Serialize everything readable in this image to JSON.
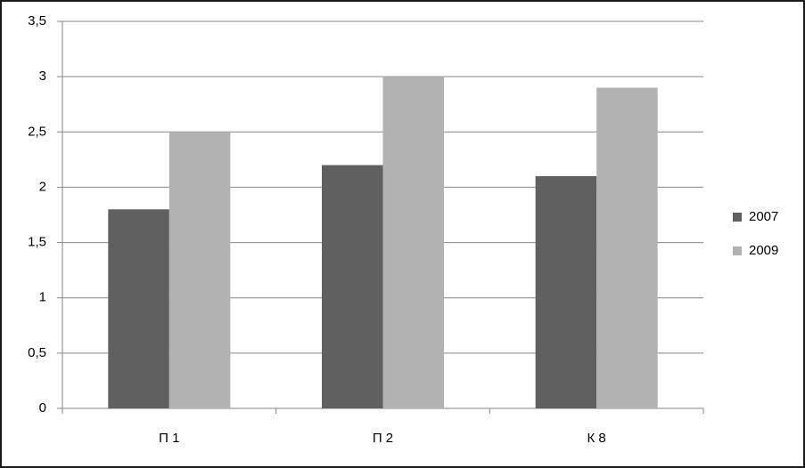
{
  "chart_data": {
    "type": "bar",
    "categories": [
      "П 1",
      "П 2",
      "К 8"
    ],
    "series": [
      {
        "name": "2007",
        "color": "#606060",
        "values": [
          1.8,
          2.2,
          2.1
        ]
      },
      {
        "name": "2009",
        "color": "#b2b2b2",
        "values": [
          2.5,
          3.0,
          2.9
        ]
      }
    ],
    "ylim": [
      0,
      3.5
    ],
    "yticks": [
      0,
      {
        "value": 0.5,
        "label": "0,5"
      },
      1,
      {
        "value": 1.5,
        "label": "1,5"
      },
      2,
      {
        "value": 2.5,
        "label": "2,5"
      },
      3,
      {
        "value": 3.5,
        "label": "3,5"
      }
    ],
    "grid": true,
    "legend": "right"
  }
}
